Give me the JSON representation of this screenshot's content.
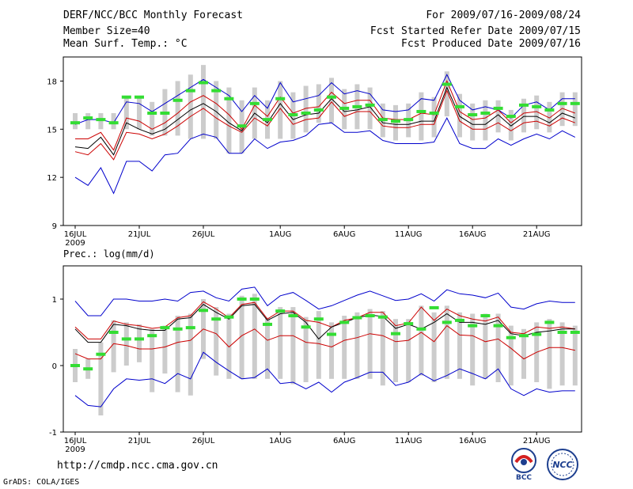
{
  "header": {
    "title": "DERF/NCC/BCC Monthly Forecast",
    "member_size": "Member Size=40",
    "variable": "Mean Surf. Temp.: °C",
    "period": "For 2009/07/16-2009/08/24",
    "fcst_started": "Fcst Started Refer Date 2009/07/15",
    "fcst_produced": "Fcst Produced Date 2009/07/16"
  },
  "footer": {
    "url": "http://cmdp.ncc.cma.gov.cn",
    "credit": "GrADS: COLA/IGES",
    "logo_bcc": "BCC",
    "logo_ncc": "NCC"
  },
  "colors": {
    "box": "#cccccc",
    "median": "#000000",
    "quartile": "#cc0000",
    "extreme": "#0000cc",
    "mean_marker": "#33dd33"
  },
  "chart_data": [
    {
      "type": "line",
      "title": "Mean Surf. Temp.: °C",
      "ylim": [
        9,
        19.5
      ],
      "yticks": [
        9,
        12,
        15,
        18
      ],
      "xtick_labels": [
        "16JUL",
        "21JUL",
        "26JUL",
        "1AUG",
        "6AUG",
        "11AUG",
        "16AUG",
        "21AUG"
      ],
      "xtick_days": [
        0,
        5,
        10,
        16,
        21,
        26,
        31,
        36
      ],
      "year_label": "2009",
      "x": [
        0,
        1,
        2,
        3,
        4,
        5,
        6,
        7,
        8,
        9,
        10,
        11,
        12,
        13,
        14,
        15,
        16,
        17,
        18,
        19,
        20,
        21,
        22,
        23,
        24,
        25,
        26,
        27,
        28,
        29,
        30,
        31,
        32,
        33,
        34,
        35,
        36,
        37,
        38,
        39
      ],
      "series": [
        {
          "name": "max",
          "values": [
            15.3,
            15.6,
            15.6,
            15.4,
            16.7,
            16.6,
            16.1,
            16.6,
            17.1,
            17.6,
            18.1,
            17.6,
            17.1,
            16.1,
            17.1,
            16.3,
            17.9,
            16.7,
            16.9,
            17.1,
            17.9,
            17.2,
            17.4,
            17.2,
            16.2,
            16.1,
            16.2,
            16.9,
            16.8,
            18.4,
            16.8,
            16.2,
            16.4,
            16.2,
            15.7,
            16.5,
            16.7,
            16.2,
            16.9,
            16.9
          ]
        },
        {
          "name": "q_upper",
          "values": [
            14.4,
            14.4,
            14.8,
            13.7,
            15.7,
            15.5,
            15.0,
            15.4,
            16.0,
            16.7,
            17.1,
            16.6,
            15.9,
            15.0,
            16.5,
            15.8,
            17.0,
            16.0,
            16.3,
            16.4,
            17.3,
            16.6,
            16.8,
            16.8,
            15.7,
            15.6,
            15.6,
            16.0,
            15.9,
            18.0,
            16.1,
            15.6,
            15.7,
            16.2,
            15.4,
            16.0,
            16.1,
            15.7,
            16.3,
            16.0
          ]
        },
        {
          "name": "median",
          "values": [
            13.9,
            13.8,
            14.5,
            13.4,
            15.4,
            15.0,
            14.7,
            15.0,
            15.6,
            16.2,
            16.6,
            16.1,
            15.4,
            14.9,
            16.0,
            15.4,
            16.6,
            15.6,
            15.9,
            16.0,
            16.9,
            16.1,
            16.2,
            16.4,
            15.4,
            15.3,
            15.3,
            15.5,
            15.5,
            17.6,
            15.8,
            15.3,
            15.3,
            15.9,
            15.2,
            15.8,
            15.8,
            15.4,
            16.0,
            15.7
          ]
        },
        {
          "name": "q_lower",
          "values": [
            13.6,
            13.4,
            14.1,
            13.1,
            14.8,
            14.7,
            14.4,
            14.7,
            15.2,
            15.8,
            16.3,
            15.7,
            15.2,
            14.8,
            15.7,
            15.2,
            16.3,
            15.3,
            15.6,
            15.7,
            16.7,
            15.8,
            16.1,
            16.1,
            15.2,
            15.1,
            15.1,
            15.3,
            15.3,
            17.4,
            15.5,
            15.0,
            15.0,
            15.4,
            14.9,
            15.4,
            15.5,
            15.2,
            15.7,
            15.4
          ]
        },
        {
          "name": "min",
          "values": [
            12.0,
            11.5,
            12.6,
            11.0,
            13.0,
            13.0,
            12.4,
            13.4,
            13.5,
            14.4,
            14.7,
            14.5,
            13.5,
            13.5,
            14.4,
            13.8,
            14.2,
            14.3,
            14.6,
            15.3,
            15.4,
            14.8,
            14.8,
            14.9,
            14.3,
            14.1,
            14.1,
            14.1,
            14.2,
            15.7,
            14.1,
            13.8,
            13.8,
            14.4,
            14.0,
            14.4,
            14.7,
            14.4,
            14.9,
            14.5
          ]
        },
        {
          "name": "ensemble_mean",
          "values": [
            15.4,
            15.7,
            15.6,
            15.4,
            17.0,
            17.0,
            16.0,
            16.0,
            16.8,
            17.4,
            17.9,
            17.4,
            16.9,
            15.2,
            16.6,
            15.6,
            16.9,
            15.9,
            16.0,
            16.2,
            17.0,
            16.3,
            16.4,
            16.5,
            15.6,
            15.5,
            15.6,
            16.1,
            16.0,
            17.8,
            16.4,
            15.9,
            16.0,
            16.3,
            15.8,
            16.5,
            16.4,
            16.2,
            16.6,
            16.6
          ]
        },
        {
          "name": "box_high",
          "values": [
            16.0,
            16.0,
            16.0,
            16.0,
            17.0,
            17.0,
            16.7,
            17.5,
            18.0,
            18.4,
            19.0,
            18.0,
            17.6,
            16.8,
            17.6,
            16.8,
            18.0,
            17.3,
            17.7,
            17.8,
            18.2,
            17.5,
            17.8,
            17.6,
            16.6,
            16.5,
            16.6,
            17.3,
            17.0,
            18.6,
            17.2,
            16.6,
            16.8,
            16.8,
            16.2,
            16.9,
            17.1,
            16.7,
            17.3,
            17.3
          ]
        },
        {
          "name": "box_low",
          "values": [
            15.0,
            15.0,
            15.0,
            15.0,
            15.0,
            15.0,
            14.6,
            14.6,
            14.6,
            14.4,
            14.4,
            14.4,
            13.5,
            13.5,
            14.4,
            14.4,
            14.4,
            14.4,
            14.8,
            15.4,
            15.4,
            15.0,
            15.0,
            15.0,
            14.5,
            14.3,
            14.5,
            14.3,
            14.5,
            15.8,
            14.5,
            14.3,
            14.3,
            14.8,
            14.3,
            14.8,
            15.0,
            14.8,
            15.2,
            15.2
          ]
        }
      ]
    },
    {
      "type": "line",
      "title": "Prec.: log(mm/d)",
      "ylim": [
        -1,
        1.5
      ],
      "yticks": [
        -1,
        0,
        1
      ],
      "xtick_labels": [
        "16JUL",
        "21JUL",
        "26JUL",
        "1AUG",
        "6AUG",
        "11AUG",
        "16AUG",
        "21AUG"
      ],
      "xtick_days": [
        0,
        5,
        10,
        16,
        21,
        26,
        31,
        36
      ],
      "year_label": "2009",
      "x": [
        0,
        1,
        2,
        3,
        4,
        5,
        6,
        7,
        8,
        9,
        10,
        11,
        12,
        13,
        14,
        15,
        16,
        17,
        18,
        19,
        20,
        21,
        22,
        23,
        24,
        25,
        26,
        27,
        28,
        29,
        30,
        31,
        32,
        33,
        34,
        35,
        36,
        37,
        38,
        39
      ],
      "series": [
        {
          "name": "max",
          "values": [
            0.97,
            0.75,
            0.75,
            1.0,
            1.0,
            0.97,
            0.97,
            1.0,
            0.97,
            1.1,
            1.12,
            1.02,
            0.97,
            1.15,
            1.18,
            0.9,
            1.05,
            1.1,
            0.98,
            0.85,
            0.9,
            0.98,
            1.06,
            1.12,
            1.05,
            0.98,
            1.0,
            1.08,
            0.97,
            1.14,
            1.08,
            1.06,
            1.02,
            1.09,
            0.88,
            0.85,
            0.93,
            0.97,
            0.95,
            0.95
          ]
        },
        {
          "name": "q_upper",
          "values": [
            0.58,
            0.4,
            0.4,
            0.67,
            0.62,
            0.6,
            0.56,
            0.58,
            0.72,
            0.75,
            0.96,
            0.85,
            0.72,
            0.92,
            0.95,
            0.7,
            0.82,
            0.82,
            0.68,
            0.65,
            0.58,
            0.68,
            0.72,
            0.8,
            0.8,
            0.6,
            0.64,
            0.88,
            0.68,
            0.85,
            0.75,
            0.7,
            0.67,
            0.73,
            0.5,
            0.48,
            0.58,
            0.56,
            0.58,
            0.55
          ]
        },
        {
          "name": "median",
          "values": [
            0.55,
            0.35,
            0.35,
            0.62,
            0.6,
            0.55,
            0.53,
            0.53,
            0.7,
            0.72,
            0.92,
            0.8,
            0.7,
            0.9,
            0.92,
            0.68,
            0.78,
            0.8,
            0.65,
            0.4,
            0.58,
            0.65,
            0.72,
            0.76,
            0.74,
            0.56,
            0.62,
            0.55,
            0.65,
            0.78,
            0.65,
            0.65,
            0.62,
            0.68,
            0.48,
            0.45,
            0.5,
            0.52,
            0.55,
            0.55
          ]
        },
        {
          "name": "q_lower",
          "values": [
            0.18,
            0.1,
            0.1,
            0.33,
            0.3,
            0.25,
            0.25,
            0.28,
            0.35,
            0.38,
            0.55,
            0.48,
            0.28,
            0.45,
            0.55,
            0.38,
            0.45,
            0.45,
            0.35,
            0.33,
            0.28,
            0.38,
            0.42,
            0.48,
            0.45,
            0.36,
            0.38,
            0.5,
            0.36,
            0.6,
            0.46,
            0.45,
            0.36,
            0.4,
            0.26,
            0.1,
            0.2,
            0.27,
            0.27,
            0.23
          ]
        },
        {
          "name": "min",
          "values": [
            -0.45,
            -0.6,
            -0.62,
            -0.35,
            -0.2,
            -0.22,
            -0.2,
            -0.27,
            -0.12,
            -0.2,
            0.2,
            0.05,
            -0.08,
            -0.2,
            -0.18,
            -0.05,
            -0.27,
            -0.25,
            -0.35,
            -0.25,
            -0.4,
            -0.25,
            -0.18,
            -0.1,
            -0.1,
            -0.3,
            -0.25,
            -0.12,
            -0.23,
            -0.15,
            -0.05,
            -0.12,
            -0.2,
            -0.05,
            -0.35,
            -0.45,
            -0.35,
            -0.4,
            -0.38,
            -0.38
          ]
        },
        {
          "name": "ensemble_mean",
          "values": [
            0.0,
            -0.05,
            0.17,
            0.5,
            0.4,
            0.4,
            0.45,
            0.57,
            0.55,
            0.57,
            0.83,
            0.7,
            0.73,
            1.0,
            1.0,
            0.62,
            0.82,
            0.75,
            0.58,
            0.7,
            0.47,
            0.65,
            0.72,
            0.75,
            0.73,
            0.48,
            0.63,
            0.55,
            0.87,
            0.65,
            0.68,
            0.6,
            0.75,
            0.6,
            0.42,
            0.45,
            0.47,
            0.65,
            0.5,
            0.5
          ]
        },
        {
          "name": "box_high",
          "values": [
            0.25,
            0.1,
            0.35,
            0.68,
            0.65,
            0.62,
            0.55,
            0.6,
            0.75,
            0.78,
            1.0,
            0.88,
            0.78,
            1.05,
            1.08,
            0.72,
            0.88,
            0.88,
            0.73,
            0.82,
            0.65,
            0.75,
            0.8,
            0.85,
            0.82,
            0.7,
            0.7,
            0.9,
            0.8,
            0.9,
            0.8,
            0.78,
            0.78,
            0.78,
            0.6,
            0.55,
            0.65,
            0.7,
            0.65,
            0.6
          ]
        },
        {
          "name": "box_low",
          "values": [
            -0.25,
            -0.2,
            -0.75,
            -0.1,
            0.0,
            0.05,
            -0.4,
            -0.12,
            -0.4,
            -0.45,
            0.1,
            -0.15,
            -0.2,
            -0.2,
            -0.2,
            -0.2,
            -0.2,
            -0.28,
            -0.25,
            -0.2,
            -0.2,
            -0.2,
            -0.2,
            -0.2,
            -0.3,
            -0.25,
            -0.25,
            -0.15,
            -0.25,
            -0.2,
            -0.2,
            -0.3,
            -0.2,
            -0.25,
            -0.3,
            -0.2,
            -0.25,
            -0.35,
            -0.3,
            -0.3
          ]
        }
      ]
    }
  ]
}
